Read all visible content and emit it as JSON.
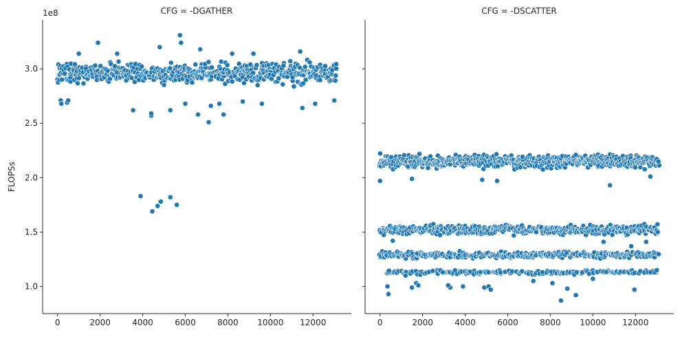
{
  "chart_data": {
    "type": "scatter",
    "ylabel": "FLOPSs",
    "y_offset_label": "1e8",
    "ylim": [
      75000000,
      345000000
    ],
    "xlim": [
      -700,
      13800
    ],
    "point_color": "#1f77b4",
    "x_ticks": [
      0,
      2000,
      4000,
      6000,
      8000,
      10000,
      12000
    ],
    "x_tick_labels": [
      "0",
      "2000",
      "4000",
      "6000",
      "8000",
      "10000",
      "12000"
    ],
    "y_ticks": [
      100000000,
      150000000,
      200000000,
      250000000,
      300000000
    ],
    "y_tick_labels": [
      "1.0",
      "1.5",
      "2.0",
      "2.5",
      "3.0"
    ],
    "panels": [
      {
        "title": "CFG = -DGATHER",
        "bands": [
          {
            "y_center": 296000000,
            "dense_spread": 14000000,
            "x_step": 60,
            "x_start": 0,
            "x_end": 13100
          }
        ],
        "points": [
          {
            "x": 150,
            "y": 271000000
          },
          {
            "x": 180,
            "y": 268000000
          },
          {
            "x": 450,
            "y": 269000000
          },
          {
            "x": 500,
            "y": 271000000
          },
          {
            "x": 1900,
            "y": 324000000
          },
          {
            "x": 3550,
            "y": 262000000
          },
          {
            "x": 3900,
            "y": 183000000
          },
          {
            "x": 4400,
            "y": 257000000
          },
          {
            "x": 4450,
            "y": 169000000
          },
          {
            "x": 4400,
            "y": 259000000
          },
          {
            "x": 4700,
            "y": 174000000
          },
          {
            "x": 4800,
            "y": 320000000
          },
          {
            "x": 4850,
            "y": 178000000
          },
          {
            "x": 5300,
            "y": 182000000
          },
          {
            "x": 5300,
            "y": 262000000
          },
          {
            "x": 5600,
            "y": 175000000
          },
          {
            "x": 5750,
            "y": 331000000
          },
          {
            "x": 5800,
            "y": 324000000
          },
          {
            "x": 6000,
            "y": 268000000
          },
          {
            "x": 6600,
            "y": 258000000
          },
          {
            "x": 6700,
            "y": 318000000
          },
          {
            "x": 7100,
            "y": 251000000
          },
          {
            "x": 7200,
            "y": 266000000
          },
          {
            "x": 7800,
            "y": 258000000
          },
          {
            "x": 7600,
            "y": 268000000
          },
          {
            "x": 8700,
            "y": 270000000
          },
          {
            "x": 9600,
            "y": 268000000
          },
          {
            "x": 11500,
            "y": 264000000
          },
          {
            "x": 11400,
            "y": 316000000
          },
          {
            "x": 12100,
            "y": 268000000
          },
          {
            "x": 13000,
            "y": 271000000
          },
          {
            "x": 2800,
            "y": 314000000
          },
          {
            "x": 9200,
            "y": 314000000
          },
          {
            "x": 8200,
            "y": 314000000
          },
          {
            "x": 1000,
            "y": 314000000
          }
        ]
      },
      {
        "title": "CFG = -DSCATTER",
        "bands": [
          {
            "y_center": 215000000,
            "dense_spread": 8500000,
            "x_step": 55,
            "x_start": 0,
            "x_end": 13100
          },
          {
            "y_center": 152000000,
            "dense_spread": 6000000,
            "x_step": 75,
            "x_start": 0,
            "x_end": 13100
          },
          {
            "y_center": 129000000,
            "dense_spread": 4000000,
            "x_step": 90,
            "x_start": 0,
            "x_end": 13100
          },
          {
            "y_center": 113000000,
            "dense_spread": 2500000,
            "x_step": 160,
            "x_start": 300,
            "x_end": 13000
          }
        ],
        "points": [
          {
            "x": 0,
            "y": 197000000
          },
          {
            "x": 400,
            "y": 93000000
          },
          {
            "x": 350,
            "y": 100000000
          },
          {
            "x": 1500,
            "y": 99000000
          },
          {
            "x": 1700,
            "y": 103000000
          },
          {
            "x": 1800,
            "y": 101000000
          },
          {
            "x": 3300,
            "y": 99000000
          },
          {
            "x": 3200,
            "y": 101000000
          },
          {
            "x": 3900,
            "y": 100000000
          },
          {
            "x": 4900,
            "y": 99000000
          },
          {
            "x": 5100,
            "y": 100000000
          },
          {
            "x": 5200,
            "y": 97000000
          },
          {
            "x": 7200,
            "y": 105000000
          },
          {
            "x": 8100,
            "y": 103000000
          },
          {
            "x": 8500,
            "y": 87000000
          },
          {
            "x": 8800,
            "y": 98000000
          },
          {
            "x": 9200,
            "y": 92000000
          },
          {
            "x": 10800,
            "y": 193000000
          },
          {
            "x": 11800,
            "y": 137000000
          },
          {
            "x": 11950,
            "y": 97000000
          },
          {
            "x": 12700,
            "y": 201000000
          },
          {
            "x": 13000,
            "y": 115000000
          },
          {
            "x": 5500,
            "y": 197000000
          },
          {
            "x": 4800,
            "y": 198000000
          },
          {
            "x": 1500,
            "y": 199000000
          },
          {
            "x": 600,
            "y": 142000000
          },
          {
            "x": 10500,
            "y": 141000000
          },
          {
            "x": 12500,
            "y": 141000000
          },
          {
            "x": 1200,
            "y": 110000000
          },
          {
            "x": 10000,
            "y": 107000000
          }
        ]
      }
    ]
  }
}
